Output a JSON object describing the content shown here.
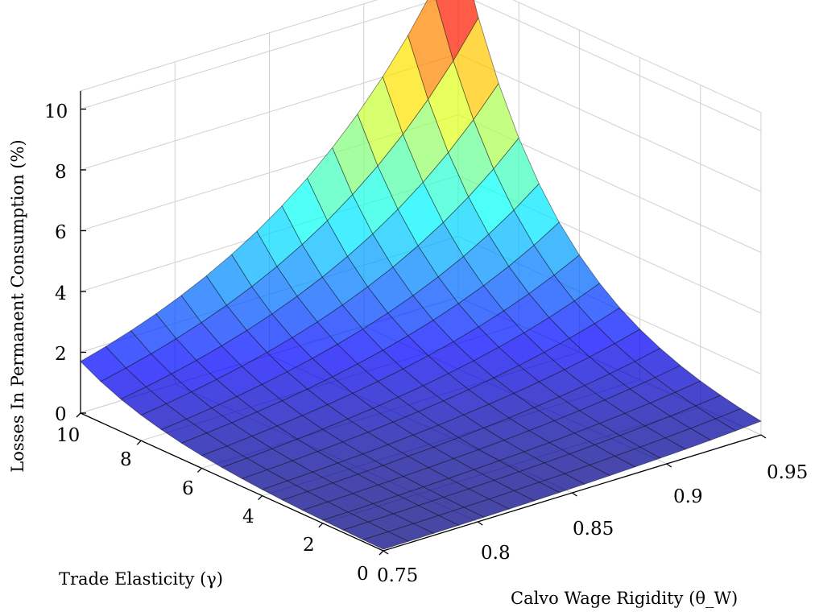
{
  "chart_data": {
    "type": "surface",
    "title": "",
    "x_axis": {
      "label": "Calvo Wage Rigidity (θ_W)",
      "range": [
        0.75,
        0.95
      ],
      "ticks": [
        "0.75",
        "0.8",
        "0.85",
        "0.9",
        "0.95"
      ]
    },
    "y_axis": {
      "label": "Trade Elasticity (γ)",
      "range": [
        0,
        10
      ],
      "ticks": [
        "0",
        "2",
        "4",
        "6",
        "8",
        "10"
      ]
    },
    "z_axis": {
      "label": "Losses In Permanent Consumption (%)",
      "range": [
        0,
        10.6
      ],
      "ticks": [
        "0",
        "2",
        "4",
        "6",
        "8",
        "10"
      ]
    },
    "colormap": "jet",
    "grid": true,
    "corner_values": [
      {
        "theta_w": 0.75,
        "gamma": 0,
        "loss": 0.05
      },
      {
        "theta_w": 0.95,
        "gamma": 0,
        "loss": 0.45
      },
      {
        "theta_w": 0.75,
        "gamma": 10,
        "loss": 1.7
      },
      {
        "theta_w": 0.95,
        "gamma": 10,
        "loss": 11.8
      }
    ]
  }
}
